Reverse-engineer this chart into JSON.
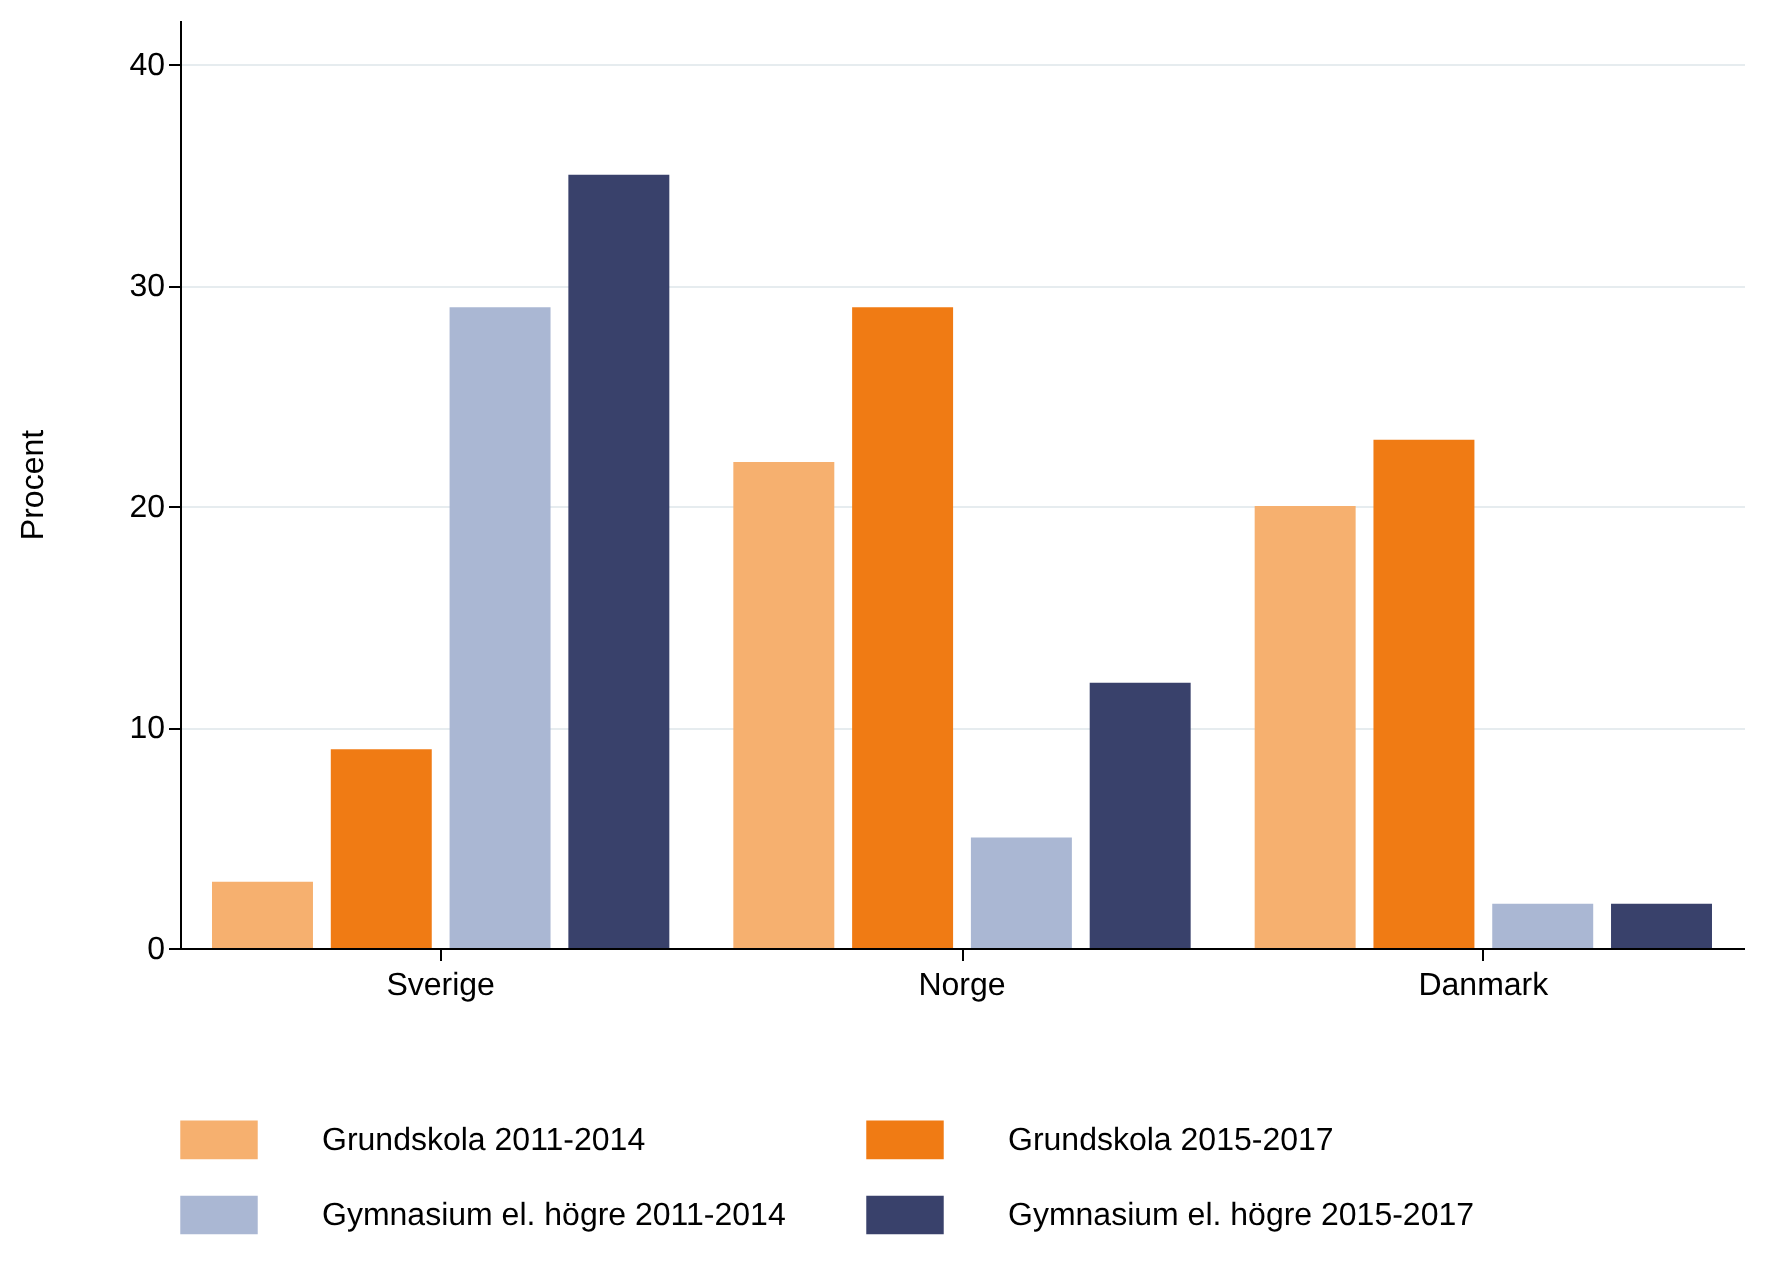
{
  "chart_data": {
    "type": "bar",
    "ylabel": "Procent",
    "categories": [
      "Sverige",
      "Norge",
      "Danmark"
    ],
    "series": [
      {
        "name": "Grundskola 2011-2014",
        "color": "#f6b06f",
        "values": [
          3,
          22,
          20
        ]
      },
      {
        "name": "Grundskola 2015-2017",
        "color": "#f07b14",
        "values": [
          9,
          29,
          23
        ]
      },
      {
        "name": "Gymnasium el. högre 2011-2014",
        "color": "#aab7d3",
        "values": [
          29,
          5,
          2
        ]
      },
      {
        "name": "Gymnasium el. högre 2015-2017",
        "color": "#39416b",
        "values": [
          35,
          12,
          2
        ]
      }
    ],
    "ylim": [
      0,
      42
    ],
    "yticks": [
      0,
      10,
      20,
      30,
      40
    ],
    "grid": "y",
    "legend": "bottom"
  }
}
